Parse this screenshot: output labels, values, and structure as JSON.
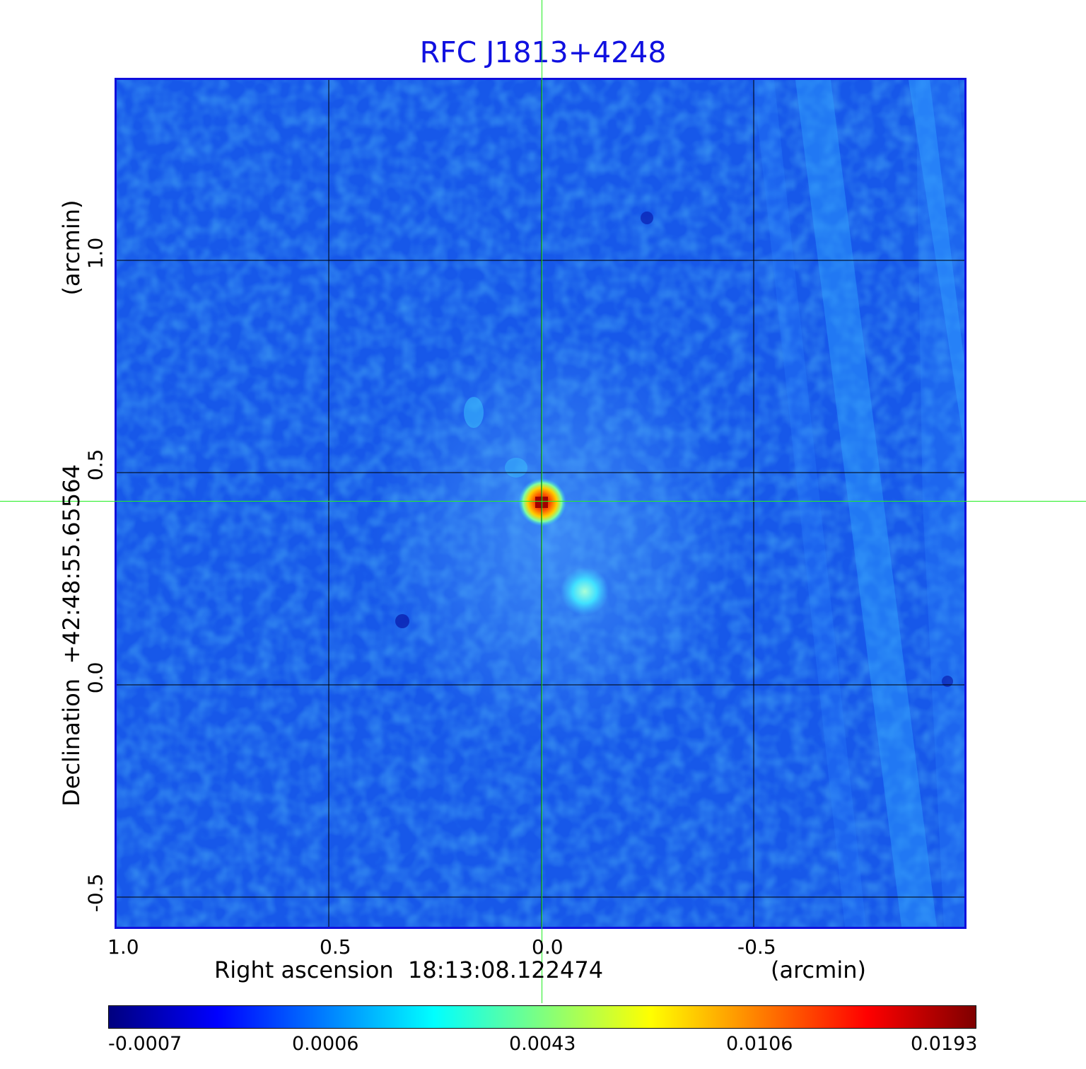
{
  "title": "RFC J1813+4248",
  "x_axis": {
    "label": "Right ascension  18:13:08.122474",
    "unit": "(arcmin)",
    "ticks": [
      "1.0",
      "0.5",
      "0.0",
      "-0.5"
    ]
  },
  "y_axis": {
    "label": "Declination  +42:48:55.65564",
    "unit": "(arcmin)",
    "ticks": [
      "1.0",
      "0.5",
      "0.0",
      "-0.5"
    ]
  },
  "colorbar": {
    "ticks": [
      "-0.0007",
      "0.0006",
      "0.0043",
      "0.0106",
      "0.0193"
    ],
    "colormap": [
      "#00007f",
      "#0000ff",
      "#007fff",
      "#00ffff",
      "#7fff7f",
      "#ffff00",
      "#ff7f00",
      "#ff0000",
      "#7f0000"
    ]
  },
  "colors": {
    "title": "#1010e0",
    "frame": "#1010dd",
    "crosshair": "#22ee22",
    "background_map": "#1a66f0",
    "source": "#d23a10"
  }
}
